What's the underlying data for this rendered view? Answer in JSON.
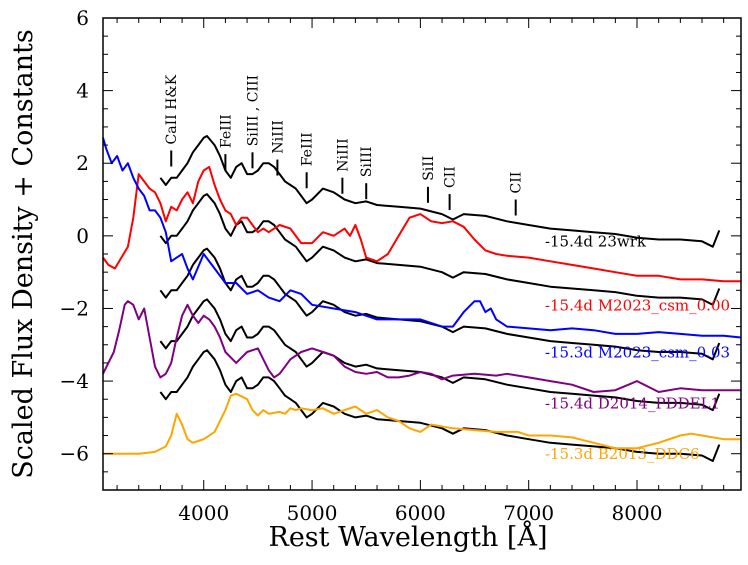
{
  "chart_data": {
    "type": "line",
    "title": "",
    "xlabel": "Rest Wavelength [Å]",
    "ylabel": "Scaled Flux Density + Constants",
    "xlim": [
      3070,
      8960
    ],
    "ylim": [
      -7,
      6
    ],
    "xticks": [
      4000,
      5000,
      6000,
      7000,
      8000
    ],
    "xtick_labels": [
      "4000",
      "5000",
      "6000",
      "7000",
      "8000"
    ],
    "yticks": [
      -6,
      -4,
      -2,
      0,
      2,
      4,
      6
    ],
    "ytick_labels": [
      "−6",
      "−4",
      "−2",
      "0",
      "2",
      "4",
      "6"
    ],
    "grid": false,
    "legend": "inline labels at right",
    "line_ids": [
      {
        "label": "CaII H&K",
        "x": 3700,
        "y": 1.8
      },
      {
        "label": "FeIII",
        "x": 4200,
        "y": 1.7
      },
      {
        "label": "SiIII , CIII",
        "x": 4450,
        "y": 1.75
      },
      {
        "label": "NiIII",
        "x": 4680,
        "y": 1.55
      },
      {
        "label": "FeIII",
        "x": 4950,
        "y": 1.2
      },
      {
        "label": "NiIII",
        "x": 5280,
        "y": 1.05
      },
      {
        "label": "SiIII",
        "x": 5500,
        "y": 0.9
      },
      {
        "label": "SiII",
        "x": 6070,
        "y": 0.8
      },
      {
        "label": "CII",
        "x": 6270,
        "y": 0.6
      },
      {
        "label": "CII",
        "x": 6880,
        "y": 0.45
      }
    ],
    "series": [
      {
        "name": "-15.4d 23wrk",
        "label": "-15.4d 23wrk",
        "color": "#000000",
        "label_pos": {
          "x": 7150,
          "y": -0.3
        },
        "x": [
          3600,
          3650,
          3700,
          3750,
          3800,
          3850,
          3900,
          3950,
          4000,
          4030,
          4100,
          4150,
          4200,
          4250,
          4300,
          4350,
          4400,
          4450,
          4500,
          4550,
          4600,
          4650,
          4700,
          4750,
          4800,
          4850,
          4900,
          4950,
          5000,
          5100,
          5200,
          5300,
          5400,
          5500,
          5600,
          5800,
          6000,
          6200,
          6300,
          6400,
          6600,
          6800,
          7000,
          7200,
          7400,
          7600,
          7800,
          8000,
          8200,
          8400,
          8600,
          8700,
          8760
        ],
        "y": [
          1.6,
          1.4,
          1.6,
          1.6,
          1.8,
          2.0,
          2.3,
          2.5,
          2.7,
          2.75,
          2.5,
          2.2,
          1.8,
          1.6,
          1.9,
          2.0,
          1.7,
          1.7,
          1.8,
          2.0,
          2.0,
          1.9,
          1.7,
          1.5,
          1.4,
          1.3,
          1.1,
          0.9,
          1.0,
          1.3,
          1.2,
          1.0,
          0.9,
          0.95,
          0.85,
          0.8,
          0.75,
          0.6,
          0.45,
          0.6,
          0.55,
          0.4,
          0.3,
          0.2,
          0.15,
          0.1,
          0.05,
          -0.05,
          -0.1,
          -0.1,
          -0.15,
          -0.3,
          0.15
        ]
      },
      {
        "name": "-15.4d M2023_csm_0.00",
        "label": "-15.4d M2023_csm_0.00",
        "color": "#ff0000",
        "comparison_offset": -1.6,
        "label_pos": {
          "x": 7150,
          "y": -2.05
        },
        "x": [
          3070,
          3120,
          3180,
          3240,
          3300,
          3350,
          3400,
          3450,
          3500,
          3550,
          3600,
          3650,
          3700,
          3750,
          3800,
          3850,
          3900,
          3950,
          4000,
          4050,
          4100,
          4150,
          4200,
          4250,
          4300,
          4350,
          4400,
          4450,
          4500,
          4550,
          4600,
          4700,
          4800,
          4900,
          5000,
          5100,
          5200,
          5300,
          5350,
          5400,
          5450,
          5500,
          5600,
          5700,
          5800,
          5900,
          6000,
          6100,
          6200,
          6300,
          6400,
          6500,
          6600,
          6700,
          6800,
          7000,
          7200,
          7400,
          7600,
          7800,
          8000,
          8200,
          8400,
          8600,
          8800,
          8960
        ],
        "y": [
          -0.6,
          -0.8,
          -0.9,
          -0.6,
          -0.3,
          0.5,
          1.7,
          1.5,
          1.3,
          1.2,
          0.9,
          0.4,
          0.8,
          0.7,
          1.0,
          1.2,
          0.9,
          1.5,
          1.8,
          1.9,
          1.4,
          1.0,
          0.7,
          0.6,
          0.3,
          0.5,
          0.5,
          0.3,
          0.1,
          0.2,
          0.1,
          0.3,
          0.2,
          -0.2,
          -0.2,
          0.1,
          0.0,
          0.2,
          0.0,
          0.3,
          -0.1,
          -0.6,
          -0.7,
          -0.5,
          0.0,
          0.5,
          0.6,
          0.4,
          0.35,
          0.4,
          0.25,
          -0.1,
          -0.4,
          -0.5,
          -0.55,
          -0.6,
          -0.7,
          -0.8,
          -0.9,
          -1.0,
          -1.1,
          -1.1,
          -1.2,
          -1.2,
          -1.25,
          -1.25
        ]
      },
      {
        "name": "-15.3d M2023_csm_0.03",
        "label": "-15.3d M2023_csm_0.03",
        "color": "#0000ff",
        "comparison_offset": -3.1,
        "label_pos": {
          "x": 7150,
          "y": -3.35
        },
        "x": [
          3070,
          3100,
          3150,
          3200,
          3250,
          3300,
          3350,
          3400,
          3450,
          3500,
          3550,
          3600,
          3650,
          3700,
          3750,
          3800,
          3850,
          3900,
          4000,
          4100,
          4200,
          4300,
          4400,
          4500,
          4600,
          4700,
          4800,
          4900,
          5000,
          5200,
          5400,
          5600,
          5800,
          6000,
          6200,
          6300,
          6400,
          6500,
          6550,
          6600,
          6650,
          6700,
          6800,
          7000,
          7200,
          7400,
          7600,
          7800,
          8000,
          8200,
          8400,
          8600,
          8800,
          8960
        ],
        "y": [
          2.7,
          2.4,
          2.0,
          2.2,
          1.8,
          2.0,
          1.6,
          1.3,
          1.1,
          0.7,
          0.7,
          0.5,
          0.1,
          -0.7,
          -0.6,
          -0.5,
          -0.9,
          -1.2,
          -0.5,
          -0.9,
          -1.3,
          -1.3,
          -1.6,
          -1.5,
          -1.7,
          -1.8,
          -1.5,
          -1.6,
          -1.9,
          -2.0,
          -2.1,
          -2.3,
          -2.3,
          -2.3,
          -2.5,
          -2.5,
          -2.1,
          -1.8,
          -1.8,
          -2.1,
          -2.0,
          -2.3,
          -2.5,
          -2.55,
          -2.6,
          -2.55,
          -2.6,
          -2.7,
          -2.7,
          -2.65,
          -2.7,
          -2.75,
          -2.75,
          -2.8
        ]
      },
      {
        "name": "-15.4d D2014_PDDEL1",
        "label": "-15.4d D2014_PDDEL1",
        "color": "#800080",
        "comparison_offset": -4.5,
        "label_pos": {
          "x": 7150,
          "y": -4.75
        },
        "x": [
          3070,
          3120,
          3170,
          3220,
          3270,
          3300,
          3350,
          3400,
          3450,
          3500,
          3550,
          3600,
          3650,
          3700,
          3750,
          3800,
          3850,
          3900,
          3950,
          4000,
          4050,
          4100,
          4150,
          4200,
          4300,
          4400,
          4500,
          4550,
          4600,
          4650,
          4700,
          4800,
          4900,
          5000,
          5100,
          5200,
          5300,
          5400,
          5500,
          5600,
          5700,
          5800,
          5900,
          6000,
          6100,
          6200,
          6300,
          6500,
          6700,
          6800,
          7000,
          7200,
          7400,
          7600,
          7800,
          8000,
          8200,
          8400,
          8600,
          8800,
          8960
        ],
        "y": [
          -3.8,
          -3.5,
          -3.2,
          -2.6,
          -1.9,
          -1.8,
          -1.9,
          -2.3,
          -2.0,
          -2.8,
          -3.6,
          -3.9,
          -3.8,
          -3.5,
          -2.8,
          -2.2,
          -1.9,
          -2.2,
          -2.4,
          -2.2,
          -2.3,
          -2.5,
          -2.8,
          -3.2,
          -3.5,
          -3.2,
          -3.1,
          -3.4,
          -3.7,
          -3.9,
          -3.8,
          -3.4,
          -3.2,
          -3.1,
          -3.2,
          -3.3,
          -3.6,
          -3.75,
          -3.8,
          -3.75,
          -3.9,
          -3.9,
          -3.85,
          -3.75,
          -3.8,
          -3.95,
          -3.85,
          -3.8,
          -3.85,
          -3.8,
          -3.9,
          -4.0,
          -4.1,
          -4.3,
          -4.25,
          -4.0,
          -4.3,
          -4.2,
          -4.25,
          -4.25,
          -4.25
        ]
      },
      {
        "name": "-15.3d B2013_DDC6",
        "label": "-15.3d B2013_DDC6",
        "color": "#ffa500",
        "comparison_offset": -5.9,
        "label_pos": {
          "x": 7150,
          "y": -6.15
        },
        "x": [
          3070,
          3200,
          3400,
          3550,
          3650,
          3700,
          3750,
          3800,
          3850,
          3900,
          3950,
          4000,
          4100,
          4200,
          4250,
          4300,
          4400,
          4450,
          4500,
          4550,
          4600,
          4700,
          4750,
          4800,
          4850,
          4900,
          5000,
          5100,
          5200,
          5300,
          5400,
          5500,
          5600,
          5700,
          5800,
          5900,
          6000,
          6100,
          6300,
          6500,
          6700,
          6900,
          7000,
          7100,
          7200,
          7400,
          7600,
          7800,
          8000,
          8200,
          8400,
          8500,
          8600,
          8800,
          8960
        ],
        "y": [
          -6.0,
          -6.0,
          -6.0,
          -5.95,
          -5.8,
          -5.5,
          -4.9,
          -5.2,
          -5.6,
          -5.7,
          -5.65,
          -5.6,
          -5.4,
          -4.8,
          -4.4,
          -4.35,
          -4.5,
          -4.8,
          -4.95,
          -4.8,
          -4.9,
          -4.85,
          -4.9,
          -4.75,
          -4.8,
          -4.75,
          -4.8,
          -4.75,
          -4.9,
          -4.8,
          -4.7,
          -4.9,
          -4.8,
          -5.0,
          -5.1,
          -5.3,
          -5.4,
          -5.2,
          -5.3,
          -5.35,
          -5.4,
          -5.4,
          -5.5,
          -5.5,
          -5.5,
          -5.55,
          -5.7,
          -5.85,
          -5.85,
          -5.7,
          -5.5,
          -5.45,
          -5.5,
          -5.6,
          -5.6
        ]
      }
    ]
  }
}
